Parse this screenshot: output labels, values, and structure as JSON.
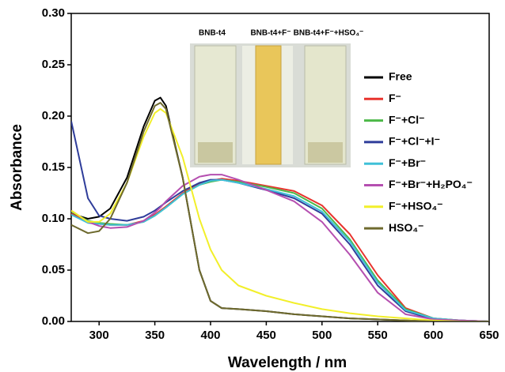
{
  "chart_data": {
    "type": "line",
    "xlabel": "Wavelength / nm",
    "ylabel": "Absorbance",
    "inset_labels": [
      "BNB-t4",
      "BNB-t4+F⁻",
      "BNB-t4+F⁻+HSO₄⁻"
    ],
    "x": [
      275,
      290,
      300,
      310,
      325,
      340,
      350,
      355,
      360,
      375,
      390,
      400,
      410,
      425,
      450,
      475,
      500,
      525,
      550,
      575,
      600,
      625,
      650
    ],
    "series": [
      {
        "name": "Free",
        "color": "#000000",
        "values": [
          0.105,
          0.1,
          0.102,
          0.11,
          0.14,
          0.19,
          0.215,
          0.218,
          0.21,
          0.14,
          0.05,
          0.02,
          0.013,
          0.012,
          0.01,
          0.007,
          0.005,
          0.003,
          0.002,
          0.001,
          0,
          0,
          0
        ]
      },
      {
        "name": "F⁻",
        "color": "#e8332d",
        "values": [
          0.105,
          0.097,
          0.095,
          0.094,
          0.094,
          0.098,
          0.104,
          0.108,
          0.112,
          0.125,
          0.134,
          0.137,
          0.139,
          0.137,
          0.132,
          0.127,
          0.113,
          0.085,
          0.045,
          0.013,
          0.003,
          0.001,
          0
        ]
      },
      {
        "name": "F⁻+Cl⁻",
        "color": "#4cb848",
        "values": [
          0.107,
          0.098,
          0.096,
          0.095,
          0.094,
          0.097,
          0.103,
          0.107,
          0.111,
          0.124,
          0.133,
          0.136,
          0.138,
          0.136,
          0.131,
          0.125,
          0.11,
          0.08,
          0.04,
          0.012,
          0.003,
          0.001,
          0
        ]
      },
      {
        "name": "F⁻+Cl⁻+I⁻",
        "color": "#2f3d9a",
        "values": [
          0.195,
          0.12,
          0.103,
          0.1,
          0.098,
          0.102,
          0.108,
          0.112,
          0.116,
          0.127,
          0.135,
          0.138,
          0.138,
          0.135,
          0.128,
          0.12,
          0.105,
          0.075,
          0.035,
          0.01,
          0.002,
          0.001,
          0
        ]
      },
      {
        "name": "F⁻+Br⁻",
        "color": "#3fc0d8",
        "values": [
          0.104,
          0.096,
          0.095,
          0.094,
          0.094,
          0.097,
          0.103,
          0.107,
          0.111,
          0.124,
          0.133,
          0.137,
          0.138,
          0.135,
          0.129,
          0.122,
          0.107,
          0.078,
          0.038,
          0.011,
          0.003,
          0.001,
          0
        ]
      },
      {
        "name": "F⁻+Br⁻+H₂PO₄⁻",
        "color": "#b54fb0",
        "values": [
          0.108,
          0.097,
          0.093,
          0.091,
          0.092,
          0.098,
          0.106,
          0.111,
          0.117,
          0.132,
          0.141,
          0.143,
          0.143,
          0.138,
          0.128,
          0.117,
          0.097,
          0.065,
          0.028,
          0.007,
          0.002,
          0.001,
          0
        ]
      },
      {
        "name": "F⁻+HSO₄⁻",
        "color": "#f2ef2a",
        "values": [
          0.108,
          0.097,
          0.097,
          0.105,
          0.135,
          0.18,
          0.203,
          0.207,
          0.203,
          0.16,
          0.1,
          0.07,
          0.05,
          0.035,
          0.025,
          0.018,
          0.012,
          0.008,
          0.005,
          0.003,
          0.001,
          0,
          0
        ]
      },
      {
        "name": "HSO₄⁻",
        "color": "#6e6a2e",
        "values": [
          0.094,
          0.086,
          0.088,
          0.1,
          0.135,
          0.185,
          0.21,
          0.213,
          0.207,
          0.14,
          0.05,
          0.02,
          0.013,
          0.012,
          0.01,
          0.007,
          0.005,
          0.003,
          0.002,
          0.001,
          0,
          0,
          0
        ]
      }
    ],
    "xlim": [
      275,
      650
    ],
    "xticks": [
      300,
      350,
      400,
      450,
      500,
      550,
      600,
      650
    ],
    "ylim": [
      0,
      0.3
    ],
    "yticks": [
      {
        "value": 0,
        "label": "0.00"
      },
      0.05,
      {
        "value": 0.1,
        "label": "0.10"
      },
      0.15,
      {
        "value": 0.2,
        "label": "0.20"
      },
      0.25,
      {
        "value": 0.3,
        "label": "0.30"
      }
    ]
  }
}
